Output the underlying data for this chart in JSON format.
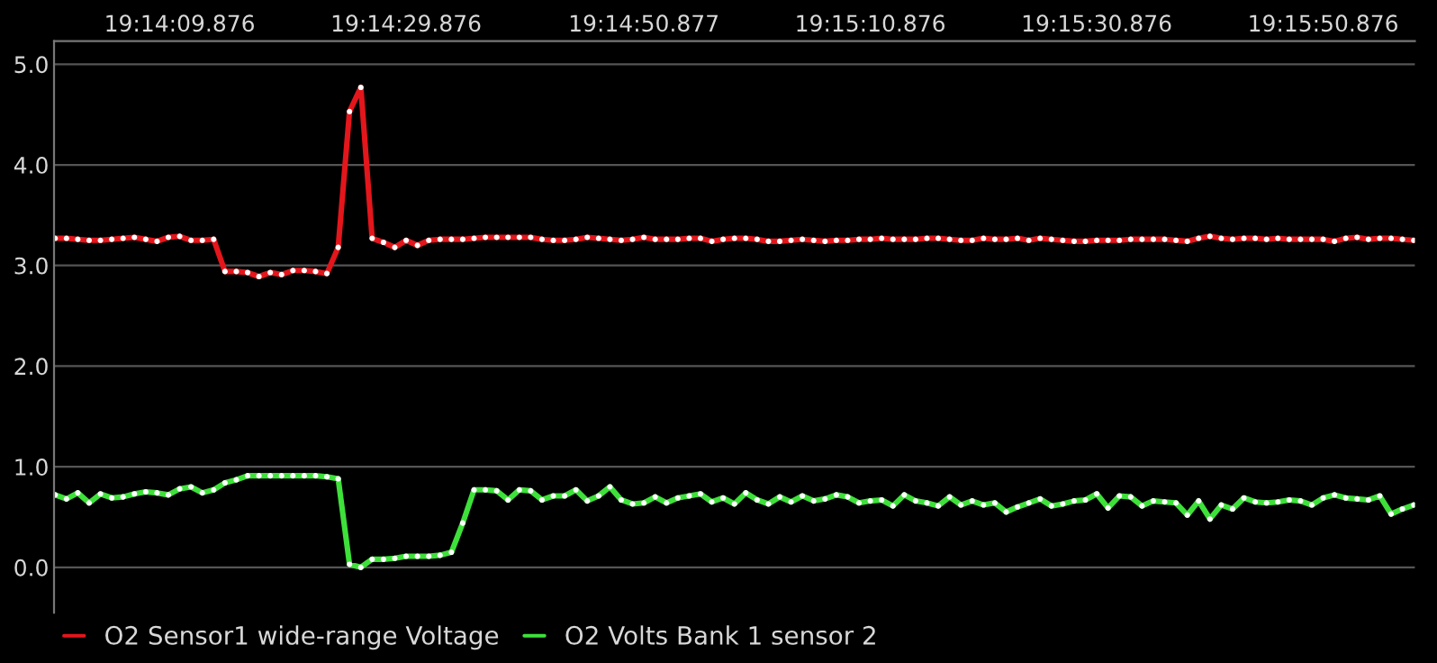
{
  "chart_data": {
    "type": "line",
    "categories": [
      null,
      null,
      null,
      null,
      null,
      null,
      null,
      null,
      null,
      null,
      null,
      "19:14:09.876",
      null,
      null,
      null,
      null,
      null,
      null,
      null,
      null,
      null,
      null,
      null,
      null,
      null,
      null,
      null,
      null,
      null,
      null,
      null,
      "19:14:29.876",
      null,
      null,
      null,
      null,
      null,
      null,
      null,
      null,
      null,
      null,
      null,
      null,
      null,
      null,
      null,
      null,
      null,
      null,
      null,
      null,
      "19:14:50.877",
      null,
      null,
      null,
      null,
      null,
      null,
      null,
      null,
      null,
      null,
      null,
      null,
      null,
      null,
      null,
      null,
      null,
      null,
      null,
      "19:15:10.876",
      null,
      null,
      null,
      null,
      null,
      null,
      null,
      null,
      null,
      null,
      null,
      null,
      null,
      null,
      null,
      null,
      null,
      null,
      null,
      "19:15:30.876",
      null,
      null,
      null,
      null,
      null,
      null,
      null,
      null,
      null,
      null,
      null,
      null,
      null,
      null,
      null,
      null,
      null,
      null,
      null,
      "19:15:50.876",
      null,
      null,
      null,
      null,
      null,
      null,
      null,
      null
    ],
    "series": [
      {
        "name": "O2 Sensor1 wide-range Voltage",
        "color": "#e3161c",
        "values": [
          3.27,
          3.27,
          3.26,
          3.25,
          3.25,
          3.26,
          3.27,
          3.28,
          3.26,
          3.24,
          3.28,
          3.29,
          3.25,
          3.25,
          3.26,
          2.94,
          2.94,
          2.93,
          2.89,
          2.93,
          2.91,
          2.95,
          2.95,
          2.94,
          2.92,
          3.18,
          4.53,
          4.77,
          3.27,
          3.23,
          3.18,
          3.25,
          3.2,
          3.25,
          3.26,
          3.26,
          3.26,
          3.27,
          3.28,
          3.28,
          3.28,
          3.28,
          3.28,
          3.26,
          3.25,
          3.25,
          3.26,
          3.28,
          3.27,
          3.26,
          3.25,
          3.26,
          3.28,
          3.26,
          3.26,
          3.26,
          3.27,
          3.27,
          3.24,
          3.26,
          3.27,
          3.27,
          3.26,
          3.24,
          3.24,
          3.25,
          3.26,
          3.25,
          3.24,
          3.25,
          3.25,
          3.26,
          3.26,
          3.27,
          3.26,
          3.26,
          3.26,
          3.27,
          3.27,
          3.26,
          3.25,
          3.25,
          3.27,
          3.26,
          3.26,
          3.27,
          3.25,
          3.27,
          3.26,
          3.25,
          3.24,
          3.24,
          3.25,
          3.25,
          3.25,
          3.26,
          3.26,
          3.26,
          3.26,
          3.25,
          3.24,
          3.27,
          3.29,
          3.27,
          3.26,
          3.27,
          3.27,
          3.26,
          3.27,
          3.26,
          3.26,
          3.26,
          3.26,
          3.24,
          3.27,
          3.28,
          3.26,
          3.27,
          3.27,
          3.26,
          3.25
        ]
      },
      {
        "name": "O2 Volts Bank 1 sensor 2",
        "color": "#3ee03a",
        "values": [
          0.72,
          0.68,
          0.74,
          0.64,
          0.73,
          0.69,
          0.7,
          0.73,
          0.75,
          0.74,
          0.72,
          0.78,
          0.8,
          0.74,
          0.77,
          0.84,
          0.87,
          0.91,
          0.91,
          0.91,
          0.91,
          0.91,
          0.91,
          0.91,
          0.9,
          0.88,
          0.03,
          0.0,
          0.08,
          0.08,
          0.09,
          0.11,
          0.11,
          0.11,
          0.12,
          0.15,
          0.44,
          0.77,
          0.77,
          0.76,
          0.67,
          0.77,
          0.76,
          0.67,
          0.71,
          0.71,
          0.77,
          0.66,
          0.71,
          0.8,
          0.67,
          0.63,
          0.64,
          0.7,
          0.64,
          0.69,
          0.71,
          0.73,
          0.65,
          0.69,
          0.63,
          0.74,
          0.67,
          0.63,
          0.7,
          0.65,
          0.71,
          0.66,
          0.68,
          0.72,
          0.7,
          0.64,
          0.66,
          0.67,
          0.61,
          0.72,
          0.66,
          0.64,
          0.61,
          0.7,
          0.62,
          0.66,
          0.62,
          0.64,
          0.55,
          0.6,
          0.64,
          0.68,
          0.61,
          0.63,
          0.66,
          0.67,
          0.73,
          0.59,
          0.71,
          0.7,
          0.61,
          0.66,
          0.65,
          0.64,
          0.52,
          0.66,
          0.48,
          0.62,
          0.58,
          0.69,
          0.65,
          0.64,
          0.65,
          0.67,
          0.66,
          0.62,
          0.69,
          0.72,
          0.69,
          0.68,
          0.67,
          0.71,
          0.53,
          0.58,
          0.62
        ]
      }
    ],
    "ylim": [
      -0.45,
      5.23
    ],
    "yticks": [
      {
        "value": 0,
        "label": "0.0"
      },
      {
        "value": 1,
        "label": "1.0"
      },
      {
        "value": 2,
        "label": "2.0"
      },
      {
        "value": 3,
        "label": "3.0"
      },
      {
        "value": 4,
        "label": "4.0"
      },
      {
        "value": 5,
        "label": "5.0"
      }
    ],
    "grid": "y",
    "legend": "bottom left",
    "marker": "circle",
    "line_style": "solid"
  }
}
